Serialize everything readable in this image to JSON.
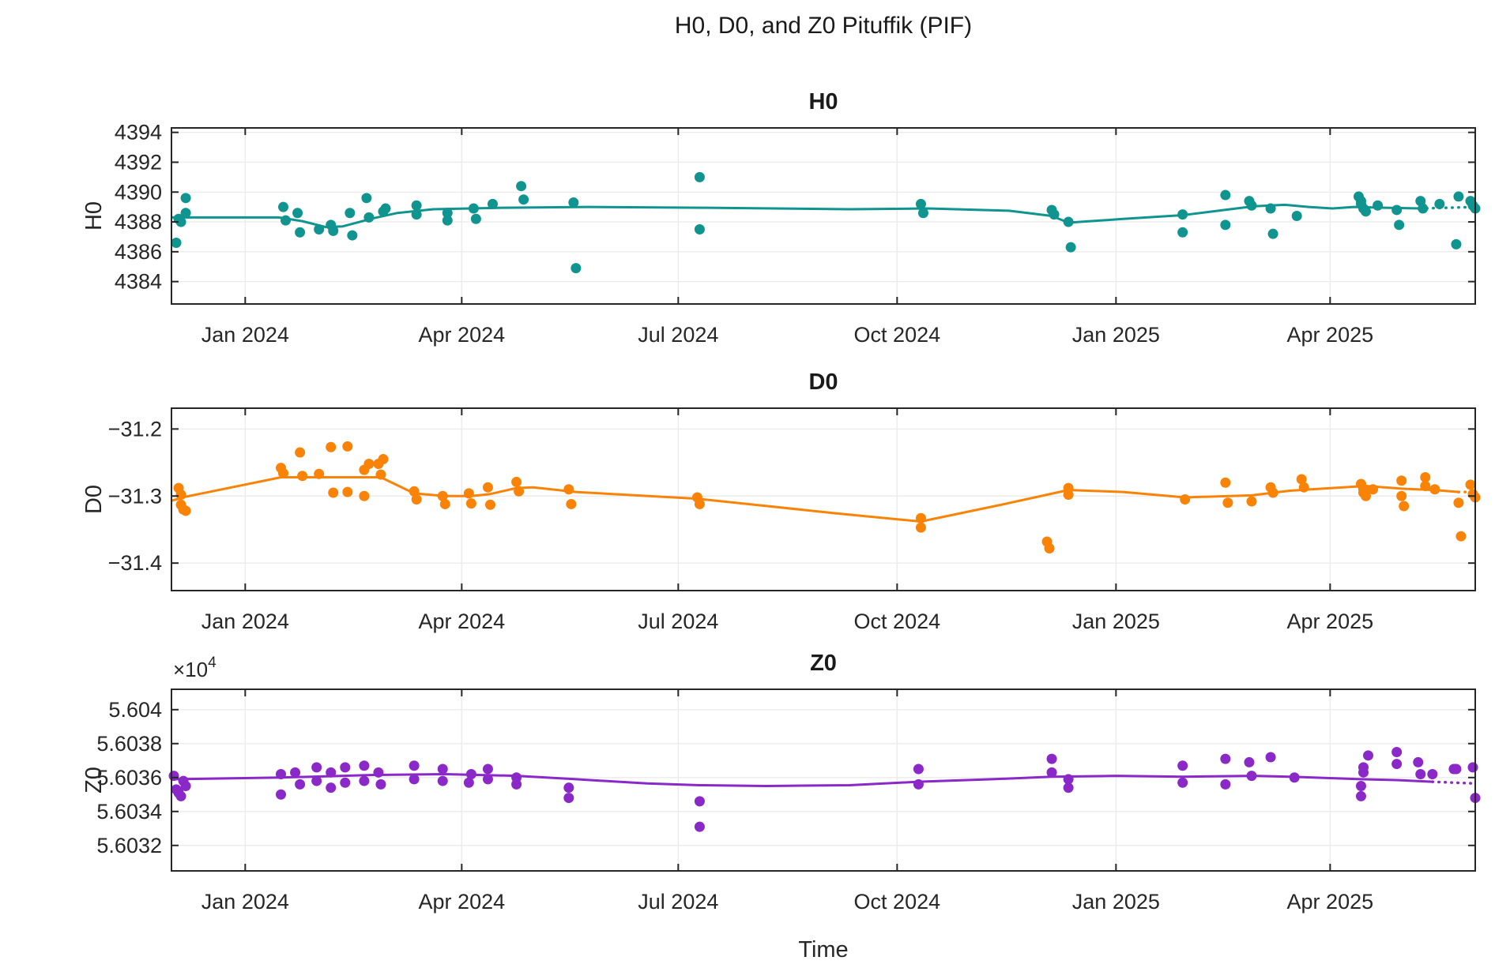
{
  "figure_title": "H0, D0, and Z0 Pituffik (PIF)",
  "colors": {
    "h0_series": "#0F948F",
    "d0_series": "#F98306",
    "z0_series": "#8A28C8",
    "axis": "#262626",
    "grid": "#EBEBEB",
    "background": "#FFFFFF"
  },
  "x_axis": {
    "label": "Time",
    "unit": "days since 2023-12-01",
    "range_days": [
      0,
      548
    ],
    "tick_days": [
      31,
      122,
      213,
      305,
      397,
      487
    ],
    "tick_labels": [
      "Jan 2024",
      "Apr 2024",
      "Jul 2024",
      "Oct 2024",
      "Jan 2025",
      "Apr 2025"
    ]
  },
  "chart_data": [
    {
      "type": "scatter",
      "title": "H0",
      "ylabel": "H0",
      "ylim": [
        4382.5,
        4394.3
      ],
      "yticks": [
        4384,
        4386,
        4388,
        4390,
        4392,
        4394
      ],
      "ytick_labels": [
        "4384",
        "4386",
        "4388",
        "4390",
        "4392",
        "4394"
      ],
      "grid": true,
      "scatter": [
        [
          2,
          4386.6
        ],
        [
          3,
          4388.2
        ],
        [
          4,
          4388.0
        ],
        [
          6,
          4389.6
        ],
        [
          6,
          4388.6
        ],
        [
          47,
          4389.0
        ],
        [
          48,
          4388.1
        ],
        [
          53,
          4388.6
        ],
        [
          54,
          4387.3
        ],
        [
          62,
          4387.5
        ],
        [
          67,
          4387.8
        ],
        [
          68,
          4387.4
        ],
        [
          75,
          4388.6
        ],
        [
          76,
          4387.1
        ],
        [
          82,
          4389.6
        ],
        [
          83,
          4388.3
        ],
        [
          89,
          4388.7
        ],
        [
          90,
          4388.9
        ],
        [
          103,
          4389.1
        ],
        [
          103,
          4388.5
        ],
        [
          116,
          4388.6
        ],
        [
          116,
          4388.1
        ],
        [
          127,
          4388.9
        ],
        [
          128,
          4388.2
        ],
        [
          135,
          4389.2
        ],
        [
          147,
          4390.4
        ],
        [
          148,
          4389.5
        ],
        [
          169,
          4389.3
        ],
        [
          170,
          4384.9
        ],
        [
          222,
          4391.0
        ],
        [
          222,
          4387.5
        ],
        [
          315,
          4389.2
        ],
        [
          316,
          4388.6
        ],
        [
          370,
          4388.8
        ],
        [
          371,
          4388.5
        ],
        [
          377,
          4388.0
        ],
        [
          378,
          4386.3
        ],
        [
          425,
          4388.5
        ],
        [
          425,
          4387.3
        ],
        [
          443,
          4389.8
        ],
        [
          443,
          4387.8
        ],
        [
          453,
          4389.4
        ],
        [
          454,
          4389.1
        ],
        [
          462,
          4388.9
        ],
        [
          463,
          4387.2
        ],
        [
          473,
          4388.4
        ],
        [
          499,
          4389.7
        ],
        [
          500,
          4389.4
        ],
        [
          500,
          4389.2
        ],
        [
          501,
          4388.9
        ],
        [
          502,
          4388.7
        ],
        [
          507,
          4389.1
        ],
        [
          515,
          4388.8
        ],
        [
          516,
          4387.8
        ],
        [
          525,
          4389.4
        ],
        [
          526,
          4388.9
        ],
        [
          533,
          4389.2
        ],
        [
          540,
          4386.5
        ],
        [
          541,
          4389.7
        ],
        [
          546,
          4389.4
        ],
        [
          547,
          4389.1
        ],
        [
          548,
          4388.9
        ]
      ],
      "trend": [
        [
          0,
          4388.3
        ],
        [
          45,
          4388.3
        ],
        [
          55,
          4388.05
        ],
        [
          65,
          4387.65
        ],
        [
          72,
          4387.7
        ],
        [
          85,
          4388.25
        ],
        [
          95,
          4388.6
        ],
        [
          110,
          4388.85
        ],
        [
          140,
          4388.95
        ],
        [
          175,
          4389.0
        ],
        [
          225,
          4388.95
        ],
        [
          285,
          4388.85
        ],
        [
          318,
          4388.9
        ],
        [
          352,
          4388.75
        ],
        [
          370,
          4388.4
        ],
        [
          377,
          4387.95
        ],
        [
          400,
          4388.2
        ],
        [
          425,
          4388.45
        ],
        [
          445,
          4388.85
        ],
        [
          455,
          4389.05
        ],
        [
          468,
          4389.15
        ],
        [
          478,
          4389.0
        ],
        [
          488,
          4388.9
        ],
        [
          497,
          4389.0
        ],
        [
          510,
          4388.95
        ],
        [
          525,
          4388.9
        ]
      ],
      "trend_dotted": [
        [
          525,
          4388.9
        ],
        [
          548,
          4389.0
        ]
      ]
    },
    {
      "type": "scatter",
      "title": "D0",
      "ylabel": "D0",
      "ylim": [
        -31.441,
        -31.169
      ],
      "yticks": [
        -31.4,
        -31.3,
        -31.2
      ],
      "ytick_labels": [
        "−31.4",
        "−31.3",
        "−31.2"
      ],
      "grid": true,
      "scatter": [
        [
          3,
          -31.288
        ],
        [
          4,
          -31.298
        ],
        [
          4,
          -31.313
        ],
        [
          5,
          -31.32
        ],
        [
          6,
          -31.322
        ],
        [
          46,
          -31.258
        ],
        [
          47,
          -31.266
        ],
        [
          54,
          -31.235
        ],
        [
          55,
          -31.27
        ],
        [
          62,
          -31.267
        ],
        [
          67,
          -31.227
        ],
        [
          68,
          -31.295
        ],
        [
          74,
          -31.226
        ],
        [
          74,
          -31.294
        ],
        [
          81,
          -31.261
        ],
        [
          81,
          -31.3
        ],
        [
          83,
          -31.252
        ],
        [
          87,
          -31.252
        ],
        [
          88,
          -31.268
        ],
        [
          89,
          -31.245
        ],
        [
          102,
          -31.293
        ],
        [
          103,
          -31.305
        ],
        [
          114,
          -31.3
        ],
        [
          115,
          -31.312
        ],
        [
          125,
          -31.296
        ],
        [
          126,
          -31.311
        ],
        [
          133,
          -31.287
        ],
        [
          134,
          -31.313
        ],
        [
          145,
          -31.279
        ],
        [
          146,
          -31.293
        ],
        [
          167,
          -31.29
        ],
        [
          168,
          -31.312
        ],
        [
          221,
          -31.302
        ],
        [
          222,
          -31.312
        ],
        [
          315,
          -31.333
        ],
        [
          315,
          -31.347
        ],
        [
          368,
          -31.368
        ],
        [
          369,
          -31.378
        ],
        [
          377,
          -31.288
        ],
        [
          377,
          -31.298
        ],
        [
          426,
          -31.305
        ],
        [
          443,
          -31.28
        ],
        [
          444,
          -31.31
        ],
        [
          454,
          -31.308
        ],
        [
          462,
          -31.287
        ],
        [
          463,
          -31.295
        ],
        [
          475,
          -31.275
        ],
        [
          476,
          -31.287
        ],
        [
          500,
          -31.282
        ],
        [
          501,
          -31.29
        ],
        [
          501,
          -31.295
        ],
        [
          502,
          -31.3
        ],
        [
          505,
          -31.29
        ],
        [
          517,
          -31.277
        ],
        [
          517,
          -31.3
        ],
        [
          518,
          -31.315
        ],
        [
          527,
          -31.272
        ],
        [
          527,
          -31.285
        ],
        [
          531,
          -31.29
        ],
        [
          541,
          -31.31
        ],
        [
          542,
          -31.36
        ],
        [
          546,
          -31.283
        ],
        [
          547,
          -31.297
        ],
        [
          548,
          -31.302
        ]
      ],
      "trend": [
        [
          0,
          -31.307
        ],
        [
          6,
          -31.301
        ],
        [
          46,
          -31.272
        ],
        [
          88,
          -31.272
        ],
        [
          102,
          -31.296
        ],
        [
          115,
          -31.3
        ],
        [
          126,
          -31.3
        ],
        [
          134,
          -31.297
        ],
        [
          145,
          -31.288
        ],
        [
          152,
          -31.287
        ],
        [
          170,
          -31.294
        ],
        [
          221,
          -31.304
        ],
        [
          280,
          -31.326
        ],
        [
          315,
          -31.338
        ],
        [
          350,
          -31.312
        ],
        [
          377,
          -31.291
        ],
        [
          400,
          -31.294
        ],
        [
          426,
          -31.302
        ],
        [
          454,
          -31.299
        ],
        [
          470,
          -31.292
        ],
        [
          502,
          -31.285
        ],
        [
          517,
          -31.289
        ],
        [
          531,
          -31.291
        ],
        [
          541,
          -31.294
        ]
      ],
      "trend_dotted": [
        [
          541,
          -31.294
        ],
        [
          548,
          -31.294
        ]
      ]
    },
    {
      "type": "scatter",
      "title": "Z0",
      "ylabel": "Z0",
      "offset_base": "×10",
      "offset_exp": "4",
      "ylim": [
        56030.5,
        56041.2
      ],
      "yticks": [
        56032,
        56034,
        56036,
        56038,
        56040
      ],
      "ytick_labels": [
        "5.6032",
        "5.6034",
        "5.6036",
        "5.6038",
        "5.604"
      ],
      "grid": true,
      "scatter": [
        [
          1,
          56036.1
        ],
        [
          2,
          56035.3
        ],
        [
          3,
          56035.1
        ],
        [
          4,
          56034.9
        ],
        [
          5,
          56035.8
        ],
        [
          6,
          56035.5
        ],
        [
          46,
          56036.2
        ],
        [
          46,
          56035.0
        ],
        [
          52,
          56036.3
        ],
        [
          54,
          56035.6
        ],
        [
          61,
          56036.6
        ],
        [
          61,
          56035.8
        ],
        [
          67,
          56036.3
        ],
        [
          67,
          56035.4
        ],
        [
          73,
          56036.6
        ],
        [
          73,
          56035.7
        ],
        [
          81,
          56036.7
        ],
        [
          81,
          56035.8
        ],
        [
          87,
          56036.3
        ],
        [
          88,
          56035.6
        ],
        [
          102,
          56036.7
        ],
        [
          102,
          56035.9
        ],
        [
          114,
          56036.5
        ],
        [
          114,
          56035.8
        ],
        [
          125,
          56035.7
        ],
        [
          126,
          56036.2
        ],
        [
          133,
          56036.5
        ],
        [
          133,
          56035.9
        ],
        [
          145,
          56036.0
        ],
        [
          145,
          56035.6
        ],
        [
          167,
          56035.4
        ],
        [
          167,
          56034.8
        ],
        [
          222,
          56034.6
        ],
        [
          222,
          56033.1
        ],
        [
          314,
          56036.5
        ],
        [
          314,
          56035.6
        ],
        [
          370,
          56037.1
        ],
        [
          370,
          56036.3
        ],
        [
          377,
          56035.9
        ],
        [
          377,
          56035.4
        ],
        [
          425,
          56036.7
        ],
        [
          425,
          56035.7
        ],
        [
          443,
          56037.1
        ],
        [
          443,
          56035.6
        ],
        [
          453,
          56036.9
        ],
        [
          454,
          56036.1
        ],
        [
          462,
          56037.2
        ],
        [
          472,
          56036.0
        ],
        [
          500,
          56034.9
        ],
        [
          500,
          56035.5
        ],
        [
          501,
          56036.3
        ],
        [
          501,
          56036.6
        ],
        [
          503,
          56037.3
        ],
        [
          515,
          56037.5
        ],
        [
          515,
          56036.8
        ],
        [
          524,
          56036.9
        ],
        [
          525,
          56036.2
        ],
        [
          530,
          56036.2
        ],
        [
          539,
          56036.5
        ],
        [
          540,
          56036.5
        ],
        [
          547,
          56036.6
        ],
        [
          548,
          56034.8
        ]
      ],
      "trend": [
        [
          0,
          56035.9
        ],
        [
          46,
          56036.0
        ],
        [
          85,
          56036.15
        ],
        [
          115,
          56036.2
        ],
        [
          145,
          56036.1
        ],
        [
          170,
          56035.9
        ],
        [
          200,
          56035.65
        ],
        [
          222,
          56035.55
        ],
        [
          250,
          56035.5
        ],
        [
          285,
          56035.55
        ],
        [
          314,
          56035.75
        ],
        [
          345,
          56035.9
        ],
        [
          370,
          56036.05
        ],
        [
          397,
          56036.1
        ],
        [
          425,
          56036.05
        ],
        [
          455,
          56036.1
        ],
        [
          470,
          56036.05
        ],
        [
          500,
          56035.9
        ],
        [
          515,
          56035.85
        ],
        [
          530,
          56035.75
        ]
      ],
      "trend_dotted": [
        [
          530,
          56035.75
        ],
        [
          548,
          56035.65
        ]
      ]
    }
  ]
}
